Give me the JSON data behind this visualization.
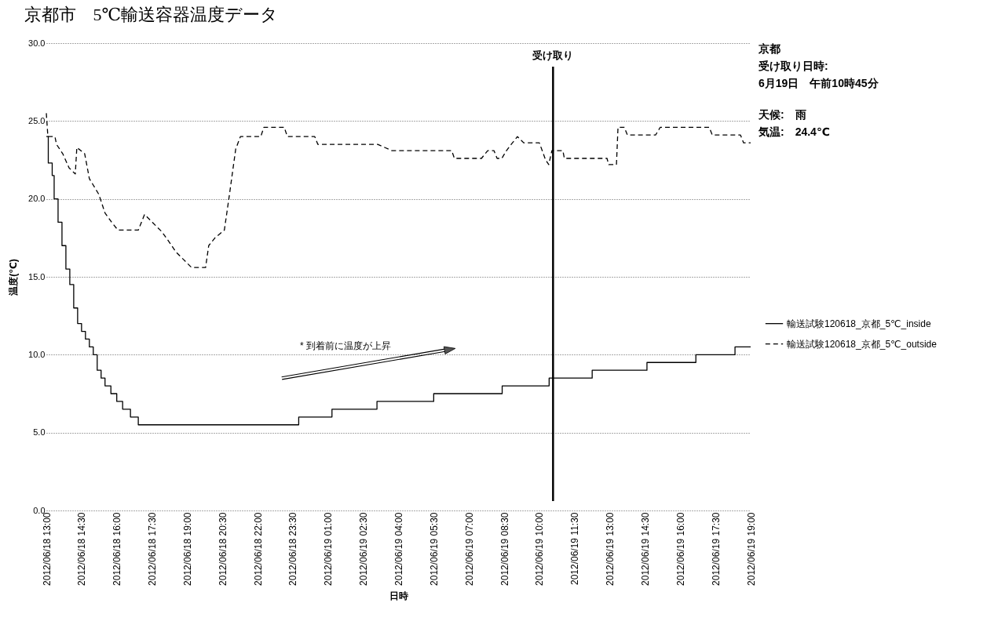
{
  "chart_data": {
    "type": "step",
    "title": "京都市　5℃輸送容器温度データ",
    "xlabel": "日時",
    "ylabel": "温度(℃)",
    "xlim": [
      "2012-06-18T13:00",
      "2012-06-19T19:00"
    ],
    "xticks": [
      {
        "value": "2012-06-18T13:00",
        "label": "2012/06/18 13:00"
      },
      {
        "value": "2012-06-18T14:30",
        "label": "2012/06/18 14:30"
      },
      {
        "value": "2012-06-18T16:00",
        "label": "2012/06/18 16:00"
      },
      {
        "value": "2012-06-18T17:30",
        "label": "2012/06/18 17:30"
      },
      {
        "value": "2012-06-18T19:00",
        "label": "2012/06/18 19:00"
      },
      {
        "value": "2012-06-18T20:30",
        "label": "2012/06/18 20:30"
      },
      {
        "value": "2012-06-18T22:00",
        "label": "2012/06/18 22:00"
      },
      {
        "value": "2012-06-18T23:30",
        "label": "2012/06/18 23:30"
      },
      {
        "value": "2012-06-19T01:00",
        "label": "2012/06/19 01:00"
      },
      {
        "value": "2012-06-19T02:30",
        "label": "2012/06/19 02:30"
      },
      {
        "value": "2012-06-19T04:00",
        "label": "2012/06/19 04:00"
      },
      {
        "value": "2012-06-19T05:30",
        "label": "2012/06/19 05:30"
      },
      {
        "value": "2012-06-19T07:00",
        "label": "2012/06/19 07:00"
      },
      {
        "value": "2012-06-19T08:30",
        "label": "2012/06/19 08:30"
      },
      {
        "value": "2012-06-19T10:00",
        "label": "2012/06/19 10:00"
      },
      {
        "value": "2012-06-19T11:30",
        "label": "2012/06/19 11:30"
      },
      {
        "value": "2012-06-19T13:00",
        "label": "2012/06/19 13:00"
      },
      {
        "value": "2012-06-19T14:30",
        "label": "2012/06/19 14:30"
      },
      {
        "value": "2012-06-19T16:00",
        "label": "2012/06/19 16:00"
      },
      {
        "value": "2012-06-19T17:30",
        "label": "2012/06/19 17:30"
      },
      {
        "value": "2012-06-19T19:00",
        "label": "2012/06/19 19:00"
      }
    ],
    "ylim": [
      0,
      30
    ],
    "yticks": [
      {
        "value": 0,
        "label": "0.0"
      },
      {
        "value": 5,
        "label": "5.0"
      },
      {
        "value": 10,
        "label": "10.0"
      },
      {
        "value": 15,
        "label": "15.0"
      },
      {
        "value": 20,
        "label": "20.0"
      },
      {
        "value": 25,
        "label": "25.0"
      },
      {
        "value": 30,
        "label": "30.0"
      }
    ],
    "grid": "y",
    "legend": "right",
    "marker": "none",
    "ref_lines": [
      {
        "axis": "x",
        "value": "2012-06-19T10:35",
        "label": "受け取り",
        "color": "#000000"
      }
    ],
    "annotations": [
      "* 到着前に温度が上昇",
      "京都",
      "受け取り日時:",
      "6月19日　午前10時45分",
      "天候:　雨",
      "気温:　24.4℃"
    ],
    "series": [
      {
        "name": "輸送試験120618_京都_5℃_inside",
        "color": "#000000",
        "type": "step",
        "line_style": "solid",
        "x": [
          "2012-06-18T13:00",
          "2012-06-18T13:05",
          "2012-06-18T13:15",
          "2012-06-18T13:20",
          "2012-06-18T13:30",
          "2012-06-18T13:40",
          "2012-06-18T13:50",
          "2012-06-18T14:00",
          "2012-06-18T14:10",
          "2012-06-18T14:20",
          "2012-06-18T14:30",
          "2012-06-18T14:40",
          "2012-06-18T14:50",
          "2012-06-18T15:00",
          "2012-06-18T15:10",
          "2012-06-18T15:20",
          "2012-06-18T15:30",
          "2012-06-18T15:45",
          "2012-06-18T16:00",
          "2012-06-18T16:15",
          "2012-06-18T16:35",
          "2012-06-18T16:55",
          "2012-06-18T23:45",
          "2012-06-19T01:10",
          "2012-06-19T03:05",
          "2012-06-19T05:30",
          "2012-06-19T08:25",
          "2012-06-19T10:25",
          "2012-06-19T12:15",
          "2012-06-19T14:35",
          "2012-06-19T16:40",
          "2012-06-19T18:20",
          "2012-06-19T19:00"
        ],
        "values": [
          24.0,
          22.3,
          21.5,
          20.0,
          18.5,
          17.0,
          15.5,
          14.5,
          13.0,
          12.0,
          11.5,
          11.0,
          10.5,
          10.0,
          9.0,
          8.5,
          8.0,
          7.5,
          7.0,
          6.5,
          6.0,
          5.5,
          6.0,
          6.5,
          7.0,
          7.5,
          8.0,
          8.5,
          9.0,
          9.5,
          10.0,
          10.5,
          10.5
        ]
      },
      {
        "name": "輸送試験120618_京都_5℃_outside",
        "color": "#000000",
        "type": "line",
        "line_style": "dashed",
        "x": [
          "2012-06-18T13:00",
          "2012-06-18T13:04",
          "2012-06-18T13:22",
          "2012-06-18T13:26",
          "2012-06-18T13:42",
          "2012-06-18T13:58",
          "2012-06-18T14:14",
          "2012-06-18T14:18",
          "2012-06-18T14:38",
          "2012-06-18T14:50",
          "2012-06-18T15:14",
          "2012-06-18T15:30",
          "2012-06-18T15:47",
          "2012-06-18T16:03",
          "2012-06-18T16:55",
          "2012-06-18T17:11",
          "2012-06-18T17:31",
          "2012-06-18T17:55",
          "2012-06-18T18:15",
          "2012-06-18T18:31",
          "2012-06-18T18:51",
          "2012-06-18T19:11",
          "2012-06-18T19:47",
          "2012-06-18T19:55",
          "2012-06-18T20:11",
          "2012-06-18T20:35",
          "2012-06-18T20:47",
          "2012-06-18T21:04",
          "2012-06-18T21:16",
          "2012-06-18T22:08",
          "2012-06-18T22:16",
          "2012-06-18T23:08",
          "2012-06-18T23:16",
          "2012-06-19T00:26",
          "2012-06-19T00:34",
          "2012-06-19T03:07",
          "2012-06-19T03:43",
          "2012-06-19T06:16",
          "2012-06-19T06:23",
          "2012-06-19T07:32",
          "2012-06-19T07:48",
          "2012-06-19T08:04",
          "2012-06-19T08:12",
          "2012-06-19T08:24",
          "2012-06-19T08:36",
          "2012-06-19T08:48",
          "2012-06-19T09:04",
          "2012-06-19T09:20",
          "2012-06-19T10:00",
          "2012-06-19T10:16",
          "2012-06-19T10:24",
          "2012-06-19T10:32",
          "2012-06-19T11:00",
          "2012-06-19T11:04",
          "2012-06-19T12:53",
          "2012-06-19T12:57",
          "2012-06-19T13:17",
          "2012-06-19T13:21",
          "2012-06-19T13:37",
          "2012-06-19T13:45",
          "2012-06-19T14:57",
          "2012-06-19T15:09",
          "2012-06-19T17:14",
          "2012-06-19T17:22",
          "2012-06-19T18:34",
          "2012-06-19T18:42",
          "2012-06-19T19:00"
        ],
        "values": [
          25.5,
          24.0,
          24.0,
          23.5,
          22.9,
          22.0,
          21.6,
          23.3,
          22.9,
          21.3,
          20.3,
          19.1,
          18.5,
          18.0,
          18.0,
          19.0,
          18.5,
          17.9,
          17.2,
          16.6,
          16.1,
          15.6,
          15.6,
          17.0,
          17.5,
          18.0,
          20.1,
          23.2,
          24.0,
          24.0,
          24.6,
          24.6,
          24.0,
          24.0,
          23.5,
          23.5,
          23.1,
          23.1,
          22.6,
          22.6,
          23.1,
          23.1,
          22.6,
          22.6,
          23.1,
          23.5,
          24.0,
          23.6,
          23.6,
          22.5,
          22.2,
          23.1,
          23.1,
          22.6,
          22.6,
          22.2,
          22.2,
          24.6,
          24.6,
          24.1,
          24.1,
          24.6,
          24.6,
          24.1,
          24.1,
          23.6,
          23.6
        ]
      }
    ]
  }
}
